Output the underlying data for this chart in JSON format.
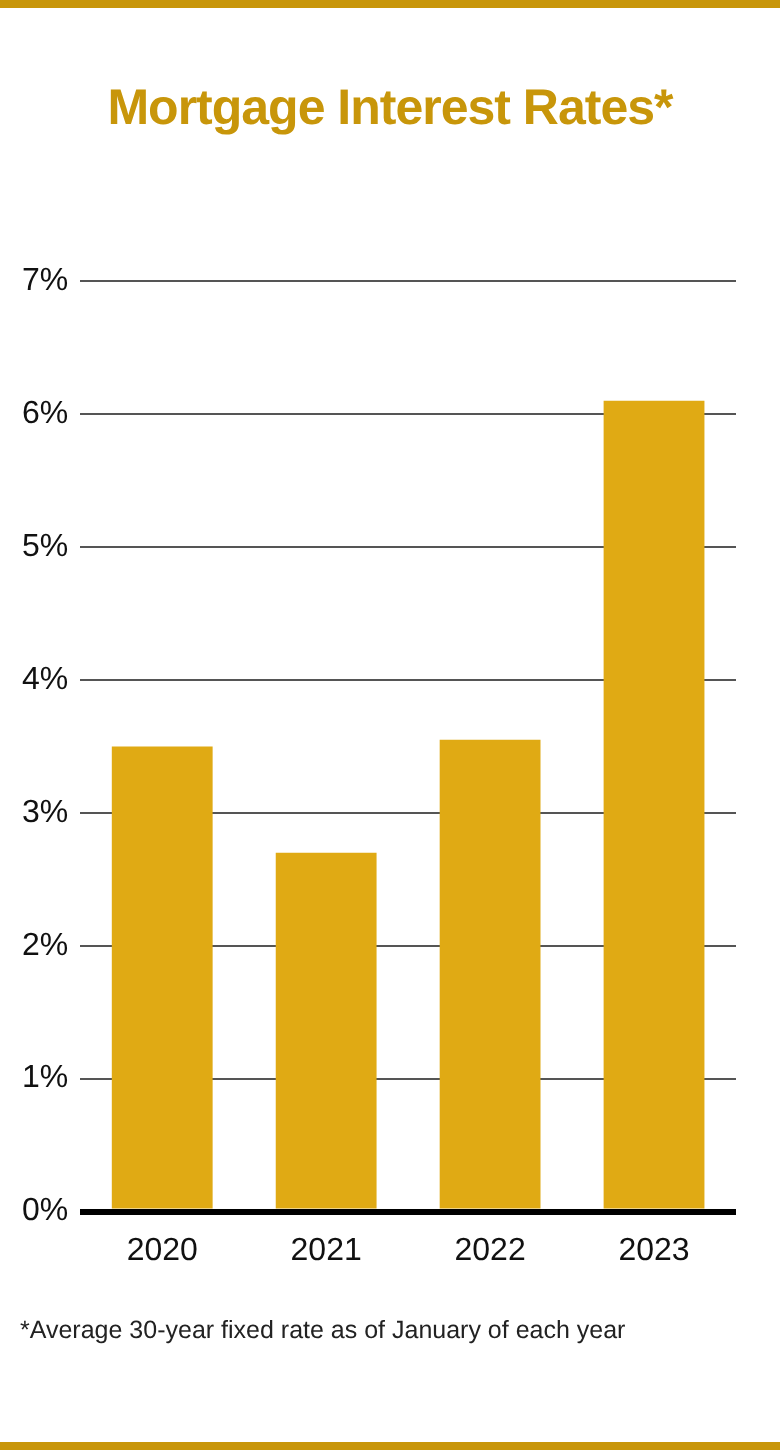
{
  "chart_data": {
    "type": "bar",
    "title": "Mortgage Interest Rates*",
    "categories": [
      "2020",
      "2021",
      "2022",
      "2023"
    ],
    "values": [
      3.5,
      2.7,
      3.55,
      6.1
    ],
    "color": "#e0aa14",
    "ylim": [
      0,
      7
    ],
    "yticks": [
      {
        "value": 0,
        "label": "0%"
      },
      {
        "value": 1,
        "label": "1%"
      },
      {
        "value": 2,
        "label": "2%"
      },
      {
        "value": 3,
        "label": "3%"
      },
      {
        "value": 4,
        "label": "4%"
      },
      {
        "value": 5,
        "label": "5%"
      },
      {
        "value": 6,
        "label": "6%"
      },
      {
        "value": 7,
        "label": "7%"
      }
    ],
    "grid": "y",
    "legend": false,
    "annotations": [
      "*Average 30-year fixed rate as of January of each year"
    ]
  }
}
